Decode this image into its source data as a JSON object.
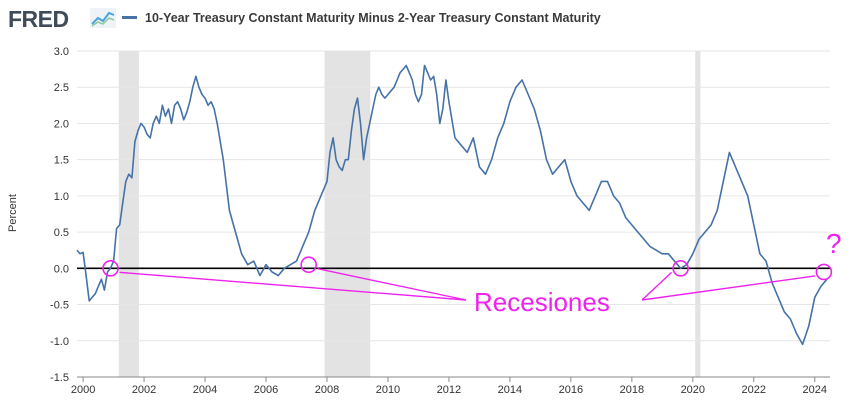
{
  "header": {
    "logo_text": "FRED",
    "logo_icon": "line-chart-icon"
  },
  "chart_data": {
    "type": "line",
    "title": "",
    "xlabel": "",
    "ylabel": "Percent",
    "xlim": [
      1999.8,
      2024.5
    ],
    "ylim": [
      -1.5,
      3.0
    ],
    "grid": true,
    "legend_position": "top",
    "x_ticks": [
      "2000",
      "2002",
      "2004",
      "2006",
      "2008",
      "2010",
      "2012",
      "2014",
      "2016",
      "2018",
      "2020",
      "2022",
      "2024"
    ],
    "y_ticks": [
      "3.0",
      "2.5",
      "2.0",
      "1.5",
      "1.0",
      "0.5",
      "0.0",
      "-0.5",
      "-1.0",
      "-1.5"
    ],
    "colors": {
      "line": "#4572a7",
      "recession": "#e3e3e3",
      "annotation": "#ee22ee"
    },
    "recessions": [
      [
        2001.17,
        2001.83
      ],
      [
        2007.92,
        2009.42
      ],
      [
        2020.08,
        2020.25
      ]
    ],
    "series": [
      {
        "name": "10-Year Treasury Constant Maturity Minus 2-Year Treasury Constant Maturity",
        "x": [
          1999.8,
          1999.9,
          2000.0,
          2000.1,
          2000.2,
          2000.3,
          2000.4,
          2000.5,
          2000.6,
          2000.7,
          2000.8,
          2000.9,
          2001.0,
          2001.1,
          2001.2,
          2001.3,
          2001.4,
          2001.5,
          2001.6,
          2001.7,
          2001.8,
          2001.9,
          2002.0,
          2002.1,
          2002.2,
          2002.3,
          2002.4,
          2002.5,
          2002.6,
          2002.7,
          2002.8,
          2002.9,
          2003.0,
          2003.1,
          2003.2,
          2003.3,
          2003.4,
          2003.5,
          2003.6,
          2003.7,
          2003.8,
          2003.9,
          2004.0,
          2004.1,
          2004.2,
          2004.3,
          2004.4,
          2004.6,
          2004.8,
          2005.0,
          2005.2,
          2005.4,
          2005.6,
          2005.8,
          2006.0,
          2006.2,
          2006.4,
          2006.6,
          2006.8,
          2007.0,
          2007.2,
          2007.4,
          2007.6,
          2007.8,
          2008.0,
          2008.1,
          2008.2,
          2008.3,
          2008.4,
          2008.5,
          2008.6,
          2008.7,
          2008.8,
          2008.9,
          2009.0,
          2009.1,
          2009.2,
          2009.3,
          2009.4,
          2009.5,
          2009.6,
          2009.7,
          2009.8,
          2009.9,
          2010.0,
          2010.1,
          2010.2,
          2010.3,
          2010.4,
          2010.5,
          2010.6,
          2010.7,
          2010.8,
          2010.9,
          2011.0,
          2011.1,
          2011.2,
          2011.3,
          2011.4,
          2011.5,
          2011.6,
          2011.7,
          2011.8,
          2011.9,
          2012.0,
          2012.2,
          2012.4,
          2012.6,
          2012.8,
          2013.0,
          2013.2,
          2013.4,
          2013.6,
          2013.8,
          2014.0,
          2014.2,
          2014.4,
          2014.6,
          2014.8,
          2015.0,
          2015.2,
          2015.4,
          2015.6,
          2015.8,
          2016.0,
          2016.2,
          2016.4,
          2016.6,
          2016.8,
          2017.0,
          2017.2,
          2017.4,
          2017.6,
          2017.8,
          2018.0,
          2018.2,
          2018.4,
          2018.6,
          2018.8,
          2019.0,
          2019.2,
          2019.4,
          2019.6,
          2019.8,
          2020.0,
          2020.2,
          2020.4,
          2020.6,
          2020.8,
          2021.0,
          2021.2,
          2021.4,
          2021.6,
          2021.8,
          2022.0,
          2022.2,
          2022.4,
          2022.6,
          2022.8,
          2023.0,
          2023.2,
          2023.4,
          2023.6,
          2023.8,
          2024.0,
          2024.2,
          2024.4
        ],
        "y": [
          0.25,
          0.2,
          0.22,
          -0.1,
          -0.45,
          -0.4,
          -0.35,
          -0.25,
          -0.15,
          -0.3,
          -0.05,
          0.0,
          0.1,
          0.55,
          0.6,
          0.9,
          1.2,
          1.3,
          1.25,
          1.75,
          1.9,
          2.0,
          1.95,
          1.85,
          1.8,
          2.0,
          2.1,
          2.0,
          2.25,
          2.1,
          2.2,
          2.0,
          2.25,
          2.3,
          2.2,
          2.05,
          2.15,
          2.3,
          2.5,
          2.65,
          2.5,
          2.4,
          2.35,
          2.25,
          2.3,
          2.2,
          2.0,
          1.5,
          0.8,
          0.5,
          0.2,
          0.05,
          0.1,
          -0.1,
          0.05,
          -0.05,
          -0.1,
          0.0,
          0.05,
          0.1,
          0.3,
          0.5,
          0.8,
          1.0,
          1.2,
          1.6,
          1.8,
          1.5,
          1.4,
          1.35,
          1.5,
          1.5,
          1.9,
          2.2,
          2.35,
          2.0,
          1.5,
          1.8,
          2.0,
          2.2,
          2.4,
          2.5,
          2.4,
          2.35,
          2.4,
          2.45,
          2.5,
          2.6,
          2.7,
          2.75,
          2.8,
          2.7,
          2.6,
          2.4,
          2.3,
          2.4,
          2.8,
          2.7,
          2.6,
          2.65,
          2.4,
          2.0,
          2.2,
          2.6,
          2.3,
          1.8,
          1.7,
          1.6,
          1.8,
          1.4,
          1.3,
          1.5,
          1.8,
          2.0,
          2.3,
          2.5,
          2.6,
          2.4,
          2.2,
          1.9,
          1.5,
          1.3,
          1.4,
          1.5,
          1.2,
          1.0,
          0.9,
          0.8,
          1.0,
          1.2,
          1.2,
          1.0,
          0.9,
          0.7,
          0.6,
          0.5,
          0.4,
          0.3,
          0.25,
          0.2,
          0.2,
          0.1,
          0.0,
          0.05,
          0.2,
          0.4,
          0.5,
          0.6,
          0.8,
          1.2,
          1.6,
          1.4,
          1.2,
          1.0,
          0.6,
          0.2,
          0.1,
          -0.2,
          -0.4,
          -0.6,
          -0.7,
          -0.9,
          -1.05,
          -0.8,
          -0.4,
          -0.25,
          -0.15
        ]
      }
    ],
    "annotations": {
      "label": "Recesiones",
      "question": "?",
      "markers": [
        [
          2000.9,
          0.0
        ],
        [
          2007.4,
          0.05
        ],
        [
          2019.6,
          0.0
        ],
        [
          2024.3,
          -0.05
        ]
      ]
    }
  }
}
